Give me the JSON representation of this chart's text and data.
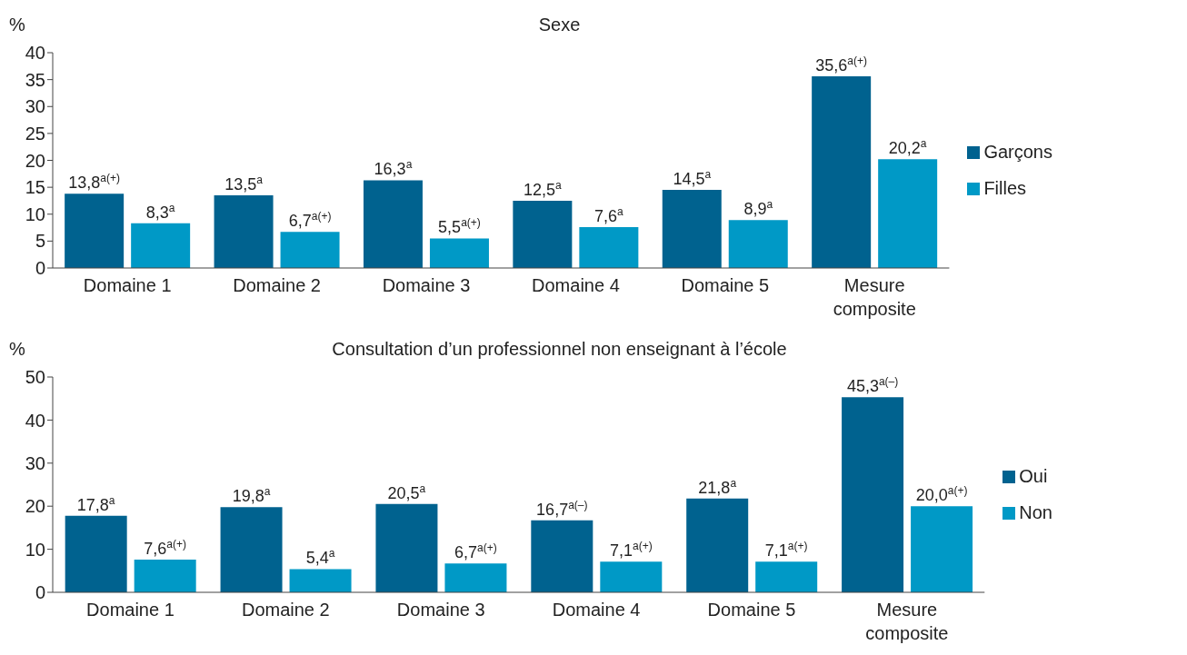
{
  "chart_data": [
    {
      "type": "bar",
      "title": "Sexe",
      "ylabel": "%",
      "categories": [
        "Domaine 1",
        "Domaine 2",
        "Domaine 3",
        "Domaine 4",
        "Domaine 5",
        "Mesure composite"
      ],
      "series": [
        {
          "name": "Garçons",
          "color": "#00628f",
          "values": [
            13.8,
            13.5,
            16.3,
            12.5,
            14.5,
            35.6
          ],
          "value_labels": [
            "13,8$^{a(+)}$",
            "13,5$^{a}$",
            "16,3$^{a}$",
            "12,5$^{a}$",
            "14,5$^{a}$",
            "35,6$^{a(+)}$"
          ]
        },
        {
          "name": "Filles",
          "color": "#0099c6",
          "values": [
            8.3,
            6.7,
            5.5,
            7.6,
            8.9,
            20.2
          ],
          "value_labels": [
            "8,3$^{a}$",
            "6,7$^{a(+)}$",
            "5,5$^{a(+)}$",
            "7,6$^{a}$",
            "8,9$^{a}$",
            "20,2$^{a}$"
          ]
        }
      ],
      "ylim": [
        0,
        40
      ],
      "yticks": [
        0,
        5,
        10,
        15,
        20,
        25,
        30,
        35,
        40
      ],
      "grid": false,
      "legend": "right"
    },
    {
      "type": "bar",
      "title": "Consultation d’un professionnel non enseignant à l’école",
      "ylabel": "%",
      "categories": [
        "Domaine 1",
        "Domaine 2",
        "Domaine 3",
        "Domaine 4",
        "Domaine 5",
        "Mesure composite"
      ],
      "series": [
        {
          "name": "Oui",
          "color": "#00628f",
          "values": [
            17.8,
            19.8,
            20.5,
            16.7,
            21.8,
            45.3
          ],
          "value_labels": [
            "17,8$^{a}$",
            "19,8$^{a}$",
            "20,5$^{a}$",
            "16,7$^{a(–)}$",
            "21,8$^{a}$",
            "45,3$^{a(–)}$"
          ]
        },
        {
          "name": "Non",
          "color": "#0099c6",
          "values": [
            7.6,
            5.4,
            6.7,
            7.1,
            7.1,
            20.0
          ],
          "value_labels": [
            "7,6$^{a(+)}$",
            "5,4$^{a}$",
            "6,7$^{a(+)}$",
            "7,1$^{a(+)}$",
            "7,1$^{a(+)}$",
            "20,0$^{a(+)}$"
          ]
        }
      ],
      "ylim": [
        0,
        50
      ],
      "yticks": [
        0,
        10,
        20,
        30,
        40,
        50
      ],
      "grid": false,
      "legend": "right"
    }
  ]
}
